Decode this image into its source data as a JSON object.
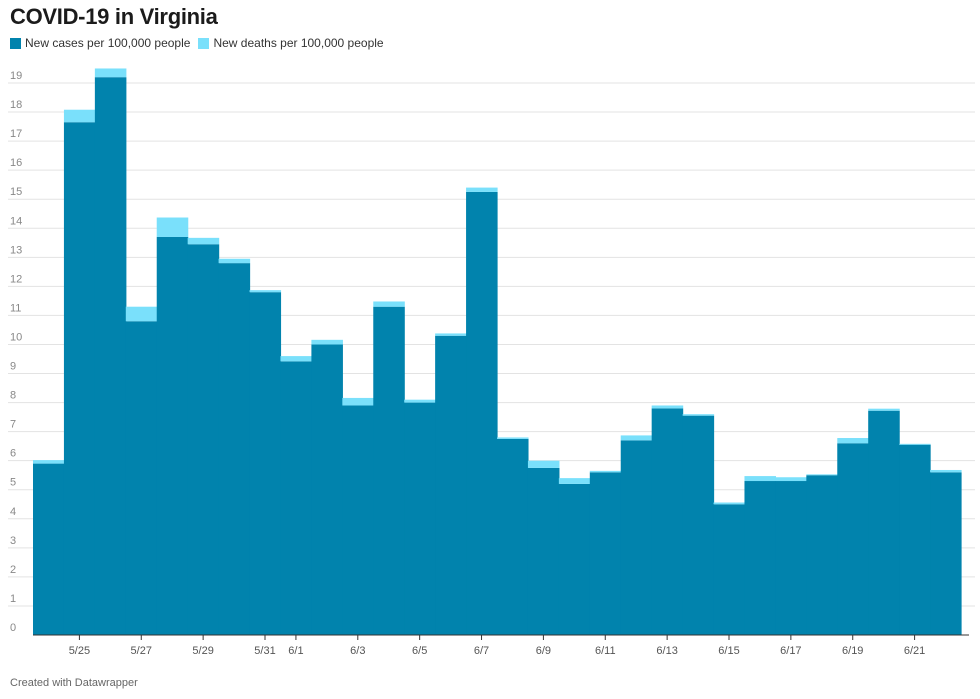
{
  "header": {
    "title": "COVID-19 in Virginia"
  },
  "footer": {
    "credit": "Created with Datawrapper"
  },
  "colors": {
    "cases": "#0183ad",
    "deaths": "#7ae0fb",
    "grid": "#e3e3e3",
    "axis": "#333333"
  },
  "chart_data": {
    "type": "area",
    "title": "COVID-19 in Virginia",
    "xlabel": "",
    "ylabel": "",
    "ylim": [
      0,
      19
    ],
    "yticks": [
      0,
      1,
      2,
      3,
      4,
      5,
      6,
      7,
      8,
      9,
      10,
      11,
      12,
      13,
      14,
      15,
      16,
      17,
      18,
      19
    ],
    "grid": true,
    "stacked": true,
    "step": true,
    "legend_position": "top-left",
    "categories": [
      "5/24",
      "5/25",
      "5/26",
      "5/27",
      "5/28",
      "5/29",
      "5/30",
      "5/31",
      "6/1",
      "6/2",
      "6/3",
      "6/4",
      "6/5",
      "6/6",
      "6/7",
      "6/8",
      "6/9",
      "6/10",
      "6/11",
      "6/12",
      "6/13",
      "6/14",
      "6/15",
      "6/16",
      "6/17",
      "6/18",
      "6/19",
      "6/20",
      "6/21",
      "6/22"
    ],
    "x_tick_labels": [
      "5/25",
      "5/27",
      "5/29",
      "5/31",
      "6/1",
      "6/3",
      "6/5",
      "6/7",
      "6/9",
      "6/11",
      "6/13",
      "6/15",
      "6/17",
      "6/19",
      "6/21"
    ],
    "series": [
      {
        "name": "New cases per 100,000 people",
        "values": [
          5.9,
          17.65,
          19.2,
          10.8,
          13.7,
          13.45,
          12.8,
          11.8,
          9.42,
          10.0,
          7.9,
          11.3,
          8.0,
          10.3,
          15.25,
          6.75,
          5.75,
          5.2,
          5.6,
          6.7,
          7.8,
          7.55,
          4.5,
          5.3,
          5.3,
          5.5,
          6.6,
          7.72,
          6.55,
          5.6
        ]
      },
      {
        "name": "New deaths per 100,000 people",
        "values": [
          0.12,
          0.43,
          0.3,
          0.5,
          0.67,
          0.22,
          0.15,
          0.07,
          0.18,
          0.16,
          0.26,
          0.18,
          0.1,
          0.08,
          0.15,
          0.05,
          0.25,
          0.2,
          0.05,
          0.17,
          0.1,
          0.05,
          0.06,
          0.17,
          0.13,
          0.03,
          0.18,
          0.07,
          0.03,
          0.08
        ]
      }
    ]
  }
}
